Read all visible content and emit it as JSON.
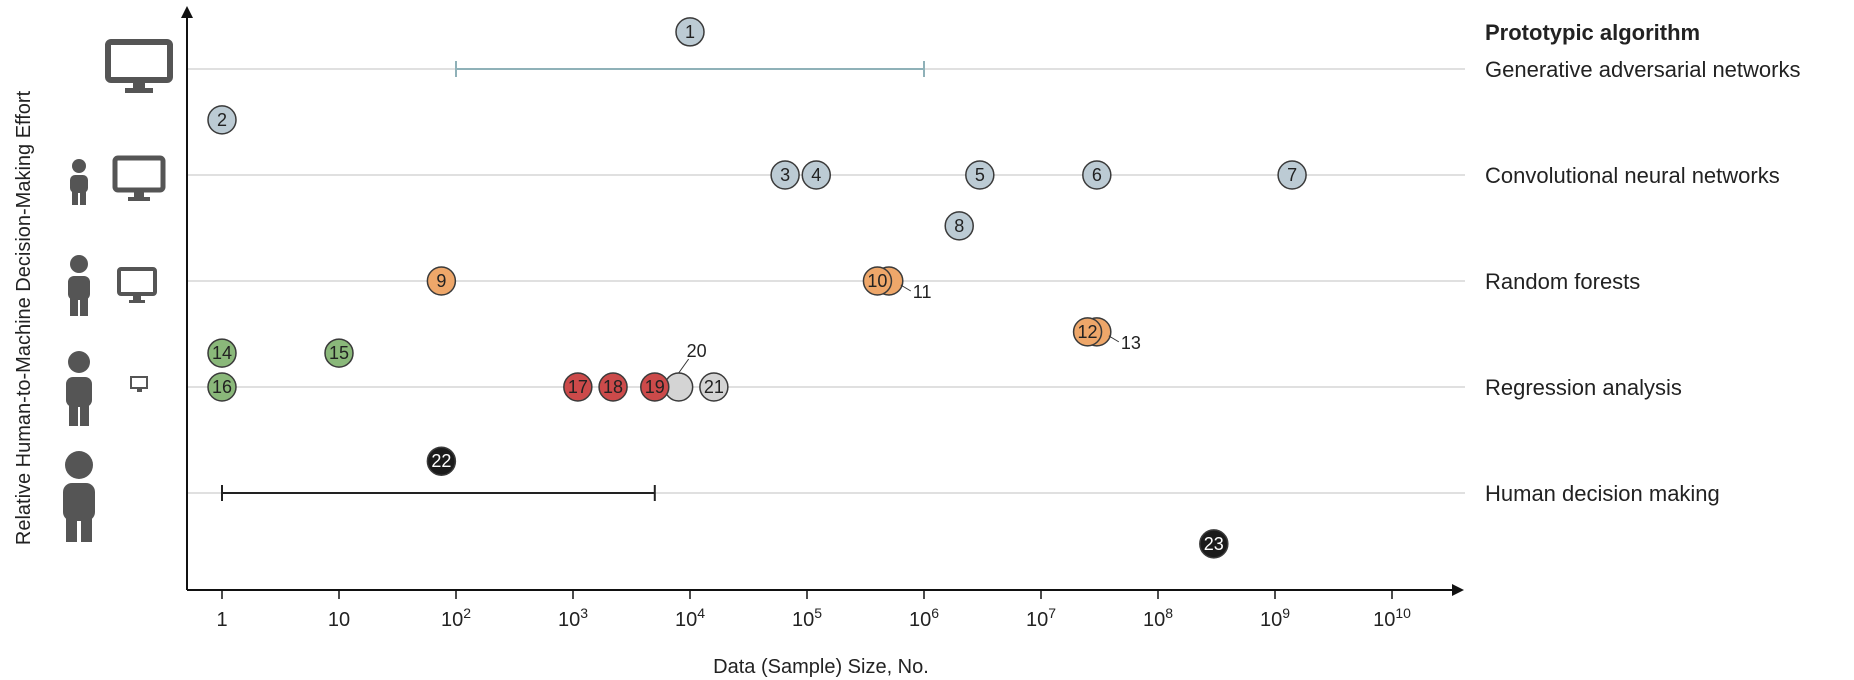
{
  "chart_data": {
    "type": "scatter",
    "x_scale": "log",
    "x_range": [
      0.7,
      20000000000
    ],
    "xlabel": "Data (Sample) Size, No.",
    "ylabel": "Relative Human-to-Machine Decision-Making Effort",
    "x_ticks": [
      {
        "value": 1,
        "base": "1",
        "exp": ""
      },
      {
        "value": 10,
        "base": "10",
        "exp": ""
      },
      {
        "value": 100,
        "base": "10",
        "exp": "2"
      },
      {
        "value": 1000,
        "base": "10",
        "exp": "3"
      },
      {
        "value": 10000,
        "base": "10",
        "exp": "4"
      },
      {
        "value": 100000,
        "base": "10",
        "exp": "5"
      },
      {
        "value": 1000000,
        "base": "10",
        "exp": "6"
      },
      {
        "value": 10000000,
        "base": "10",
        "exp": "7"
      },
      {
        "value": 100000000,
        "base": "10",
        "exp": "8"
      },
      {
        "value": 1000000000,
        "base": "10",
        "exp": "9"
      },
      {
        "value": 10000000000,
        "base": "10",
        "exp": "10"
      }
    ],
    "legend_title": "Prototypic algorithm",
    "categories": [
      {
        "name": "Generative adversarial networks",
        "level": 0
      },
      {
        "name": "Convolutional neural networks",
        "level": 1
      },
      {
        "name": "Random forests",
        "level": 2
      },
      {
        "name": "Regression analysis",
        "level": 3
      },
      {
        "name": "Human decision making",
        "level": 4
      }
    ],
    "ranges": [
      {
        "category": "Generative adversarial networks",
        "from": 100,
        "to": 1000000,
        "color": "#8fb1b8"
      },
      {
        "category": "Human decision making",
        "from": 1,
        "to": 5000,
        "color": "#222222"
      }
    ],
    "colors": {
      "gray": "#bccbd4",
      "orange": "#eea76a",
      "green": "#8ab87a",
      "red": "#cc4a4a",
      "lightgray": "#d4d4d4",
      "black": "#1b1b1b"
    },
    "points": [
      {
        "label": "1",
        "x": 10000,
        "level": -0.35,
        "color": "gray"
      },
      {
        "label": "2",
        "x": 1,
        "level": 0.48,
        "color": "gray"
      },
      {
        "label": "3",
        "x": 65000,
        "level": 1,
        "color": "gray"
      },
      {
        "label": "4",
        "x": 120000,
        "level": 1,
        "color": "gray"
      },
      {
        "label": "5",
        "x": 3000000,
        "level": 1,
        "color": "gray"
      },
      {
        "label": "6",
        "x": 30000000,
        "level": 1,
        "color": "gray"
      },
      {
        "label": "7",
        "x": 1400000000,
        "level": 1,
        "color": "gray"
      },
      {
        "label": "8",
        "x": 2000000,
        "level": 1.48,
        "color": "gray"
      },
      {
        "label": "9",
        "x": 75,
        "level": 2,
        "color": "orange"
      },
      {
        "label": "11",
        "x": 500000,
        "level": 2,
        "color": "orange",
        "external": true
      },
      {
        "label": "10",
        "x": 400000,
        "level": 2,
        "color": "orange"
      },
      {
        "label": "13",
        "x": 30000000,
        "level": 2.48,
        "color": "orange",
        "external": true
      },
      {
        "label": "12",
        "x": 25000000,
        "level": 2.48,
        "color": "orange"
      },
      {
        "label": "14",
        "x": 1,
        "level": 2.68,
        "color": "green"
      },
      {
        "label": "15",
        "x": 10,
        "level": 2.68,
        "color": "green"
      },
      {
        "label": "16",
        "x": 1,
        "level": 3,
        "color": "green"
      },
      {
        "label": "17",
        "x": 1100,
        "level": 3,
        "color": "red"
      },
      {
        "label": "18",
        "x": 2200,
        "level": 3,
        "color": "red"
      },
      {
        "label": "20",
        "x": 8000,
        "level": 3,
        "color": "lightgray",
        "external": true
      },
      {
        "label": "19",
        "x": 5000,
        "level": 3,
        "color": "red"
      },
      {
        "label": "21",
        "x": 16000,
        "level": 3,
        "color": "lightgray"
      },
      {
        "label": "22",
        "x": 75,
        "level": 3.7,
        "color": "black"
      },
      {
        "label": "23",
        "x": 300000000,
        "level": 4.48,
        "color": "black"
      }
    ]
  }
}
